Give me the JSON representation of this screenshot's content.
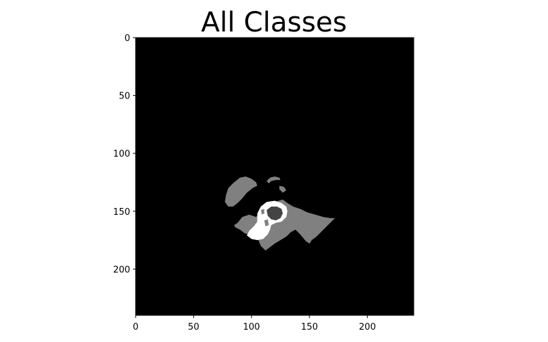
{
  "chart_data": {
    "type": "heatmap",
    "title": "All Classes",
    "xlabel": "",
    "ylabel": "",
    "image_size": [
      240,
      240
    ],
    "xlim": [
      0,
      240
    ],
    "ylim": [
      240,
      0
    ],
    "x_ticks": [
      0,
      50,
      100,
      150,
      200
    ],
    "y_ticks": [
      0,
      50,
      100,
      150,
      200
    ],
    "grid": false,
    "colormap": "gray",
    "classes": [
      {
        "value": 0,
        "color": "#000000"
      },
      {
        "value": 1,
        "color": "#444444"
      },
      {
        "value": 2,
        "color": "#808080"
      },
      {
        "value": 3,
        "color": "#ffffff"
      }
    ],
    "regions": [
      {
        "class": 2,
        "points": [
          [
            78,
            136
          ],
          [
            80,
            130
          ],
          [
            85,
            125
          ],
          [
            90,
            121
          ],
          [
            95,
            120
          ],
          [
            100,
            122
          ],
          [
            104,
            125
          ],
          [
            105,
            128
          ],
          [
            101,
            130
          ],
          [
            96,
            134
          ],
          [
            92,
            139
          ],
          [
            88,
            143
          ],
          [
            84,
            146
          ],
          [
            80,
            146
          ],
          [
            77,
            142
          ]
        ]
      },
      {
        "class": 2,
        "points": [
          [
            113,
            124
          ],
          [
            116,
            121
          ],
          [
            120,
            120
          ],
          [
            124,
            121
          ],
          [
            125,
            123
          ],
          [
            121,
            123
          ],
          [
            117,
            124
          ],
          [
            115,
            126
          ]
        ]
      },
      {
        "class": 2,
        "points": [
          [
            124,
            128
          ],
          [
            128,
            129
          ],
          [
            130,
            132
          ],
          [
            127,
            134
          ],
          [
            124,
            131
          ]
        ]
      },
      {
        "class": 2,
        "points": [
          [
            88,
            160
          ],
          [
            92,
            155
          ],
          [
            98,
            153
          ],
          [
            104,
            155
          ],
          [
            108,
            150
          ],
          [
            112,
            146
          ],
          [
            120,
            142
          ],
          [
            127,
            140
          ],
          [
            131,
            143
          ],
          [
            136,
            146
          ],
          [
            142,
            148
          ],
          [
            148,
            151
          ],
          [
            155,
            153
          ],
          [
            162,
            155
          ],
          [
            168,
            156
          ],
          [
            172,
            156
          ],
          [
            169,
            159
          ],
          [
            165,
            163
          ],
          [
            160,
            168
          ],
          [
            156,
            172
          ],
          [
            152,
            175
          ],
          [
            150,
            178
          ],
          [
            147,
            176
          ],
          [
            142,
            170
          ],
          [
            138,
            166
          ],
          [
            134,
            168
          ],
          [
            130,
            172
          ],
          [
            125,
            175
          ],
          [
            120,
            178
          ],
          [
            116,
            181
          ],
          [
            112,
            184
          ],
          [
            108,
            180
          ],
          [
            106,
            175
          ],
          [
            103,
            170
          ],
          [
            100,
            167
          ],
          [
            97,
            170
          ],
          [
            94,
            169
          ],
          [
            90,
            166
          ],
          [
            86,
            164
          ],
          [
            85,
            162
          ]
        ]
      },
      {
        "class": 3,
        "points": [
          [
            105,
            152
          ],
          [
            108,
            146
          ],
          [
            113,
            142
          ],
          [
            120,
            141
          ],
          [
            126,
            143
          ],
          [
            130,
            146
          ],
          [
            131,
            150
          ],
          [
            130,
            155
          ],
          [
            126,
            159
          ],
          [
            121,
            160
          ],
          [
            117,
            162
          ],
          [
            116,
            166
          ],
          [
            114,
            170
          ],
          [
            110,
            174
          ],
          [
            105,
            175
          ],
          [
            100,
            174
          ],
          [
            96,
            171
          ],
          [
            98,
            167
          ],
          [
            102,
            163
          ],
          [
            105,
            159
          ]
        ]
      },
      {
        "class": 1,
        "points": [
          [
            113,
            149
          ],
          [
            117,
            146
          ],
          [
            122,
            146
          ],
          [
            126,
            148
          ],
          [
            127,
            152
          ],
          [
            125,
            156
          ],
          [
            121,
            158
          ],
          [
            117,
            157
          ],
          [
            114,
            154
          ]
        ]
      },
      {
        "class": 2,
        "points": [
          [
            108,
            149
          ],
          [
            111,
            148
          ],
          [
            111,
            152
          ],
          [
            109,
            153
          ]
        ]
      },
      {
        "class": 2,
        "points": [
          [
            111,
            158
          ],
          [
            114,
            157
          ],
          [
            115,
            162
          ],
          [
            112,
            163
          ]
        ]
      }
    ]
  }
}
